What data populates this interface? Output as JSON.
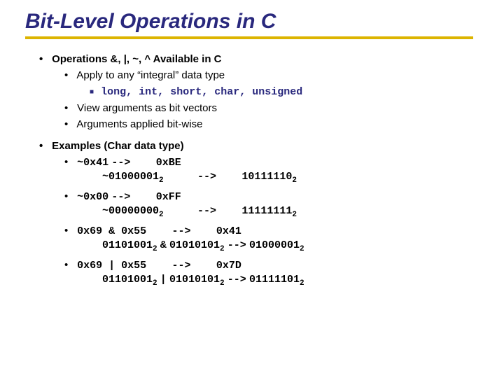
{
  "title": "Bit-Level Operations in C",
  "colors": {
    "title_color": "#29287d",
    "underline_color": "#dcb400",
    "code_color": "#29287d",
    "text_color": "#000000",
    "background": "#ffffff"
  },
  "font_sizes": {
    "title": 30,
    "body": 15
  },
  "section1": {
    "heading": "Operations &, |, ~, ^ Available in C",
    "sub1": "Apply to any “integral” data type",
    "sub1_detail": "long, int, short, char, unsigned",
    "sub2": "View arguments as bit vectors",
    "sub3": "Arguments applied bit-wise"
  },
  "section2": {
    "heading": "Examples (Char data type)",
    "ex1_a": "~0x41",
    "ex1_arrow": "-->",
    "ex1_b": "0xBE",
    "ex1_bin_a": "~01000001",
    "ex1_bin_b": "10111110",
    "ex2_a": "~0x00",
    "ex2_b": "0xFF",
    "ex2_bin_a": "~00000000",
    "ex2_bin_b": "11111111",
    "ex3_a": "0x69 & 0x55",
    "ex3_b": "0x41",
    "ex3_bin": "01101001",
    "ex3_op": "&",
    "ex3_bin2": "01010101",
    "ex3_res": "01000001",
    "ex4_a": "0x69 | 0x55",
    "ex4_b": "0x7D",
    "ex4_bin": "01101001",
    "ex4_op": "|",
    "ex4_bin2": "01010101",
    "ex4_res": "01111101",
    "sub2": "2"
  }
}
